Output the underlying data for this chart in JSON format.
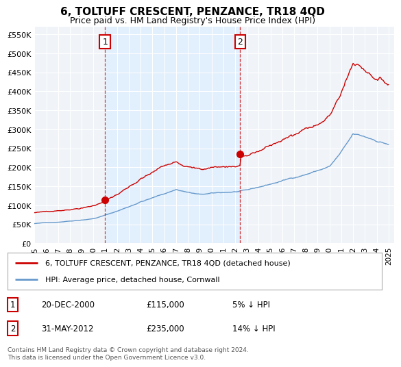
{
  "title": "6, TOLTUFF CRESCENT, PENZANCE, TR18 4QD",
  "subtitle": "Price paid vs. HM Land Registry's House Price Index (HPI)",
  "ylabel_values": [
    0,
    50000,
    100000,
    150000,
    200000,
    250000,
    300000,
    350000,
    400000,
    450000,
    500000,
    550000
  ],
  "ylim": [
    0,
    570000
  ],
  "xlim_start": 1995.0,
  "xlim_end": 2025.5,
  "hpi_color": "#6699cc",
  "price_color": "#cc0000",
  "shade_color": "#ddeeff",
  "dashed_line_color": "#cc0000",
  "background_color": "#f0f4f8",
  "grid_color": "#ffffff",
  "transaction1": {
    "date_num": 2000.97,
    "price": 115000,
    "label": "1",
    "date_str": "20-DEC-2000",
    "price_str": "£115,000",
    "hpi_str": "5% ↓ HPI"
  },
  "transaction2": {
    "date_num": 2012.42,
    "price": 235000,
    "label": "2",
    "date_str": "31-MAY-2012",
    "price_str": "£235,000",
    "hpi_str": "14% ↓ HPI"
  },
  "legend_entry1": "6, TOLTUFF CRESCENT, PENZANCE, TR18 4QD (detached house)",
  "legend_entry2": "HPI: Average price, detached house, Cornwall",
  "footer": "Contains HM Land Registry data © Crown copyright and database right 2024.\nThis data is licensed under the Open Government Licence v3.0.",
  "x_ticks": [
    1995,
    1996,
    1997,
    1998,
    1999,
    2000,
    2001,
    2002,
    2003,
    2004,
    2005,
    2006,
    2007,
    2008,
    2009,
    2010,
    2011,
    2012,
    2013,
    2014,
    2015,
    2016,
    2017,
    2018,
    2019,
    2020,
    2021,
    2022,
    2023,
    2024,
    2025
  ]
}
